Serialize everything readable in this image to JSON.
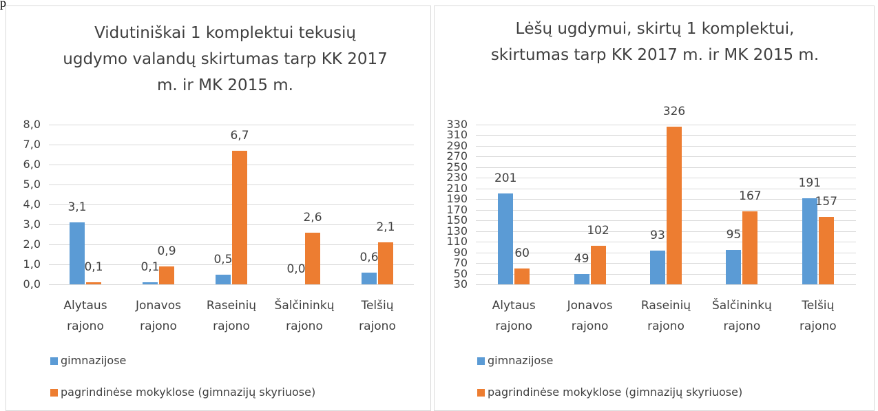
{
  "fragment": "p",
  "chart_data": [
    {
      "type": "bar",
      "title": "Vidutiniškai 1 komplektui tekusių ugdymo valandų skirtumas tarp KK 2017 m. ir MK 2015 m.",
      "categories": [
        "Alytaus rajono",
        "Jonavos rajono",
        "Raseinių rajono",
        "Šalčininkų rajono",
        "Telšių rajono"
      ],
      "series": [
        {
          "name": "gimnazijose",
          "color": "#5b9bd5",
          "values": [
            3.1,
            0.1,
            0.5,
            0.0,
            0.6
          ],
          "value_labels": [
            "3,1",
            "0,1",
            "0,5",
            "0,0",
            "0,6"
          ]
        },
        {
          "name": "pagrindinėse mokyklose (gimnazijų skyriuose)",
          "color": "#ed7d31",
          "values": [
            0.1,
            0.9,
            6.7,
            2.6,
            2.1
          ],
          "value_labels": [
            "0,1",
            "0,9",
            "6,7",
            "2,6",
            "2,1"
          ]
        }
      ],
      "ylim": [
        0,
        8
      ],
      "yticks": [
        {
          "value": 0,
          "label": "0,0"
        },
        {
          "value": 1,
          "label": "1,0"
        },
        {
          "value": 2,
          "label": "2,0"
        },
        {
          "value": 3,
          "label": "3,0"
        },
        {
          "value": 4,
          "label": "4,0"
        },
        {
          "value": 5,
          "label": "5,0"
        },
        {
          "value": 6,
          "label": "6,0"
        },
        {
          "value": 7,
          "label": "7,0"
        },
        {
          "value": 8,
          "label": "8,0"
        }
      ],
      "grid": true,
      "legend": "bottom"
    },
    {
      "type": "bar",
      "title": "Lėšų ugdymui, skirtų 1 komplektui, skirtumas tarp KK 2017 m. ir MK 2015 m.",
      "categories": [
        "Alytaus rajono",
        "Jonavos rajono",
        "Raseinių rajono",
        "Šalčininkų rajono",
        "Telšių rajono"
      ],
      "series": [
        {
          "name": "gimnazijose",
          "color": "#5b9bd5",
          "values": [
            201,
            49,
            93,
            95,
            191
          ]
        },
        {
          "name": "pagrindinėse mokyklose (gimnazijų skyriuose)",
          "color": "#ed7d31",
          "values": [
            60,
            102,
            326,
            167,
            157
          ]
        }
      ],
      "ylim": [
        30,
        330
      ],
      "yticks": [
        30,
        50,
        70,
        90,
        110,
        130,
        150,
        170,
        190,
        210,
        230,
        250,
        270,
        290,
        310,
        330
      ],
      "grid": true,
      "legend": "bottom"
    }
  ]
}
